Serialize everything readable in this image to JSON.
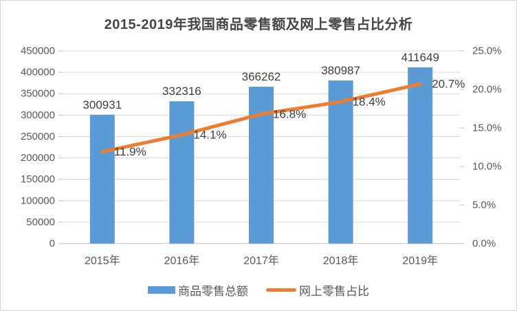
{
  "title": "2015-2019年我国商品零售额及网上零售占比分析",
  "chart_data": {
    "type": "combo",
    "subtype": [
      "bar",
      "line"
    ],
    "categories": [
      "2015年",
      "2016年",
      "2017年",
      "2018年",
      "2019年"
    ],
    "series": [
      {
        "name": "商品零售总额",
        "type": "bar",
        "axis": "left",
        "color": "#5B9BD5",
        "values": [
          300931,
          332316,
          366262,
          380987,
          411649
        ],
        "data_labels": [
          "300931",
          "332316",
          "366262",
          "380987",
          "411649"
        ]
      },
      {
        "name": "网上零售占比",
        "type": "line",
        "axis": "right",
        "color": "#ED7D31",
        "values": [
          11.9,
          14.1,
          16.8,
          18.4,
          20.7
        ],
        "data_labels": [
          "11.9%",
          "14.1%",
          "16.8%",
          "18.4%",
          "20.7%"
        ]
      }
    ],
    "left_axis": {
      "min": 0,
      "max": 450000,
      "step": 50000,
      "tick_labels": [
        "0",
        "50000",
        "100000",
        "150000",
        "200000",
        "250000",
        "300000",
        "350000",
        "400000",
        "450000"
      ]
    },
    "right_axis": {
      "min": 0,
      "max": 25,
      "step": 5,
      "tick_labels": [
        "0.0%",
        "5.0%",
        "10.0%",
        "15.0%",
        "20.0%",
        "25.0%"
      ]
    },
    "grid": true,
    "legend_position": "bottom",
    "styles": {
      "gridline_color": "#d9d9d9",
      "axis_line_color": "#bfbfbf",
      "axis_text_color": "#595959",
      "data_label_color": "#404040"
    }
  }
}
